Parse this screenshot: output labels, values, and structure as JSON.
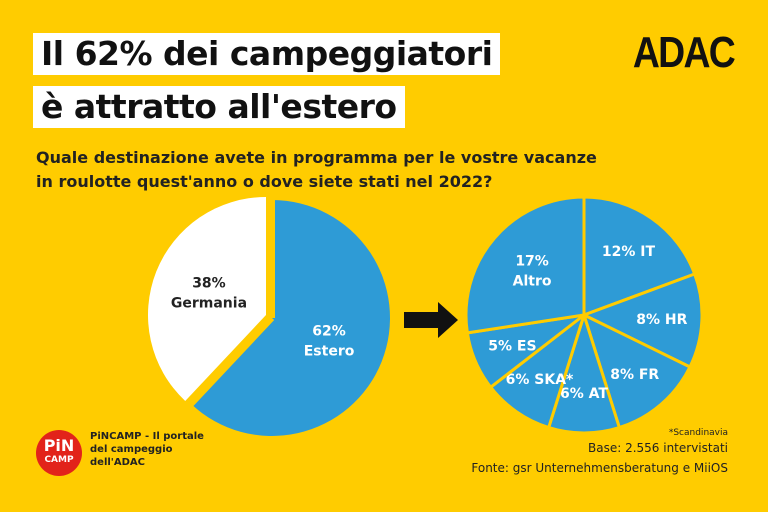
{
  "title": {
    "line1": "Il 62% dei campeggiatori",
    "line2": "è attratto all'estero"
  },
  "logo": "ADAC",
  "question": {
    "line1": "Quale destinazione avete in programma per le vostre vacanze",
    "line2": "in roulotte quest'anno o dove siete stati nel 2022?"
  },
  "colors": {
    "background": "#FFCC00",
    "slice": "#2E9BD6",
    "other": "#FFFFFF",
    "divider": "#FFCC00"
  },
  "chart_data": [
    {
      "type": "pie",
      "slices": [
        {
          "label": "62%",
          "name": "Estero",
          "value": 62
        },
        {
          "label": "38%",
          "name": "Germania",
          "value": 38
        }
      ]
    },
    {
      "type": "pie",
      "slices": [
        {
          "label": "12% IT",
          "value": 12
        },
        {
          "label": "8% HR",
          "value": 8
        },
        {
          "label": "8% FR",
          "value": 8
        },
        {
          "label": "6% AT",
          "value": 6
        },
        {
          "label": "6% SKA*",
          "value": 6
        },
        {
          "label": "5% ES",
          "value": 5
        },
        {
          "label": "17%",
          "name": "Altro",
          "value": 17
        }
      ]
    }
  ],
  "footnote": "*Scandinavia",
  "base": "Base: 2.556 intervistati",
  "source": "Fonte: gsr Unternehmensberatung e MiiOS",
  "brand": {
    "logo_top": "PiN",
    "logo_bottom": "CAMP",
    "text": "PiNCAMP - Il portale del campeggio dell'ADAC"
  },
  "arrow_icon": "right-arrow"
}
